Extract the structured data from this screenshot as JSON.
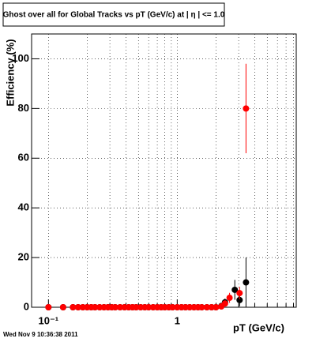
{
  "chart_data": {
    "type": "scatter",
    "title": "Ghost over all for Global Tracks vs pT (GeV/c) at | η | <= 1.0",
    "x_label": "pT (GeV/c)",
    "y_label": "Efficiency (%)",
    "footer": "Wed Nov  9 10:36:38 2011",
    "log_x": true,
    "grid": true,
    "xlim": [
      0.074,
      8.4
    ],
    "ylim": [
      0,
      110
    ],
    "xticks": [
      {
        "value": 0.1,
        "label": "10⁻¹"
      },
      1
    ],
    "xminor_ticks": [
      0.2,
      0.3,
      0.4,
      0.5,
      0.6,
      0.7,
      0.8,
      0.9,
      2,
      3,
      4,
      5,
      6,
      7,
      8
    ],
    "yticks": [
      0,
      20,
      40,
      60,
      80,
      100
    ],
    "series": [
      {
        "color": "#000000",
        "x": [
          0.1,
          0.13,
          0.155,
          0.17,
          0.185,
          0.2,
          0.215,
          0.23,
          0.25,
          0.27,
          0.29,
          0.31,
          0.33,
          0.36,
          0.39,
          0.42,
          0.45,
          0.48,
          0.52,
          0.56,
          0.6,
          0.65,
          0.7,
          0.75,
          0.8,
          0.86,
          0.92,
          1.0,
          1.08,
          1.16,
          1.25,
          1.35,
          1.45,
          1.55,
          1.7,
          1.85,
          2.0,
          2.2,
          2.35,
          2.8,
          3.05,
          3.42
        ],
        "values": [
          0,
          0,
          0,
          0,
          0,
          0,
          0,
          0,
          0,
          0,
          0,
          0,
          0,
          0,
          0,
          0,
          0,
          0,
          0,
          0,
          0,
          0,
          0,
          0,
          0,
          0,
          0,
          0,
          0,
          0,
          0,
          0,
          0,
          0,
          0,
          0,
          0,
          0.5,
          2,
          7,
          2.9,
          10
        ],
        "errors": [
          0,
          0,
          0,
          0,
          0,
          0,
          0,
          0,
          0,
          0,
          0,
          0,
          0,
          0,
          0,
          0,
          0,
          0,
          0,
          0,
          0,
          0,
          0,
          0,
          0,
          0,
          0,
          0,
          0,
          0,
          0,
          0,
          0,
          0,
          0,
          0,
          0,
          0.5,
          1.5,
          4,
          2.5,
          10
        ]
      },
      {
        "color": "#ff0000",
        "x": [
          0.1,
          0.13,
          0.155,
          0.17,
          0.185,
          0.2,
          0.215,
          0.23,
          0.25,
          0.27,
          0.29,
          0.31,
          0.33,
          0.36,
          0.39,
          0.42,
          0.45,
          0.48,
          0.52,
          0.56,
          0.6,
          0.65,
          0.7,
          0.75,
          0.8,
          0.86,
          0.92,
          1.0,
          1.08,
          1.16,
          1.25,
          1.35,
          1.45,
          1.55,
          1.7,
          1.85,
          2.0,
          2.2,
          2.35,
          2.55,
          3.05,
          3.42
        ],
        "values": [
          0,
          0,
          0,
          0,
          0,
          0,
          0,
          0,
          0,
          0,
          0,
          0,
          0,
          0,
          0,
          0,
          0,
          0,
          0,
          0,
          0,
          0,
          0,
          0,
          0,
          0,
          0,
          0,
          0,
          0,
          0,
          0,
          0,
          0,
          0,
          0,
          0,
          0.3,
          1.5,
          3.8,
          5.7,
          80
        ],
        "errors": [
          0,
          0,
          0,
          0,
          0,
          0,
          0,
          0,
          0,
          0,
          0,
          0,
          0,
          0,
          0,
          0,
          0,
          0,
          0,
          0,
          0,
          0,
          0,
          0,
          0,
          0,
          0,
          0,
          0,
          0,
          0,
          0,
          0,
          0,
          0,
          0,
          0,
          0.3,
          1,
          2,
          2.5,
          18
        ]
      }
    ]
  }
}
